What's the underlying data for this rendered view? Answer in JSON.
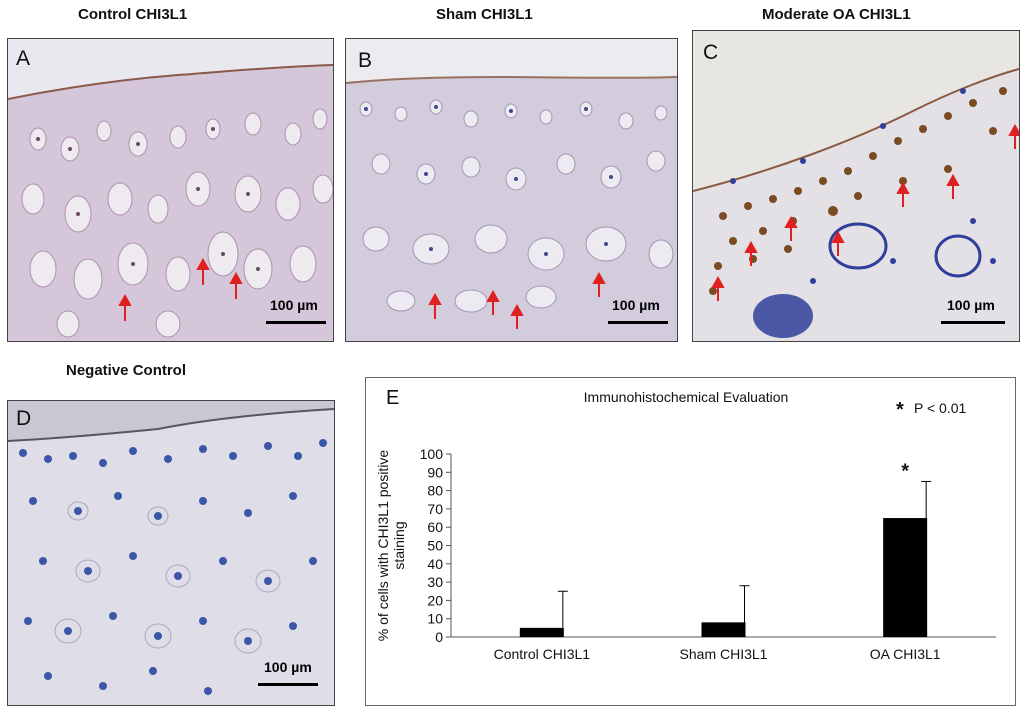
{
  "panels": {
    "A": {
      "label": "A",
      "title": "Control CHI3L1",
      "scale": "100 µm"
    },
    "B": {
      "label": "B",
      "title": "Sham CHI3L1",
      "scale": "100 µm"
    },
    "C": {
      "label": "C",
      "title": "Moderate OA CHI3L1",
      "scale": "100 µm"
    },
    "D": {
      "label": "D",
      "title": "Negative Control",
      "scale": "100 µm"
    },
    "E": {
      "label": "E"
    }
  },
  "colors": {
    "stain_purple": "#d9c8dc",
    "stain_blue": "#2f3f9a",
    "stain_brown": "#7a4a22",
    "arrow": "#e02020",
    "bar": "#000000"
  },
  "chart_data": {
    "type": "bar",
    "title": "Immunohistochemical Evaluation",
    "annotation": "P < 0.01",
    "annotation_marker": "*",
    "significance_marker": "*",
    "ylabel": "% of cells with CHI3L1 positive staining",
    "ylabel_lines": [
      "% of cells with CHI3L1 positive",
      "staining"
    ],
    "xlabel": "",
    "categories": [
      "Control CHI3L1",
      "Sham CHI3L1",
      "OA CHI3L1"
    ],
    "values": [
      5,
      8,
      65
    ],
    "errors": [
      20,
      20,
      20
    ],
    "ylim": [
      0,
      100
    ],
    "yticks": [
      0,
      10,
      20,
      30,
      40,
      50,
      60,
      70,
      80,
      90,
      100
    ],
    "significant": [
      false,
      false,
      true
    ],
    "grid": false,
    "legend": "none"
  }
}
